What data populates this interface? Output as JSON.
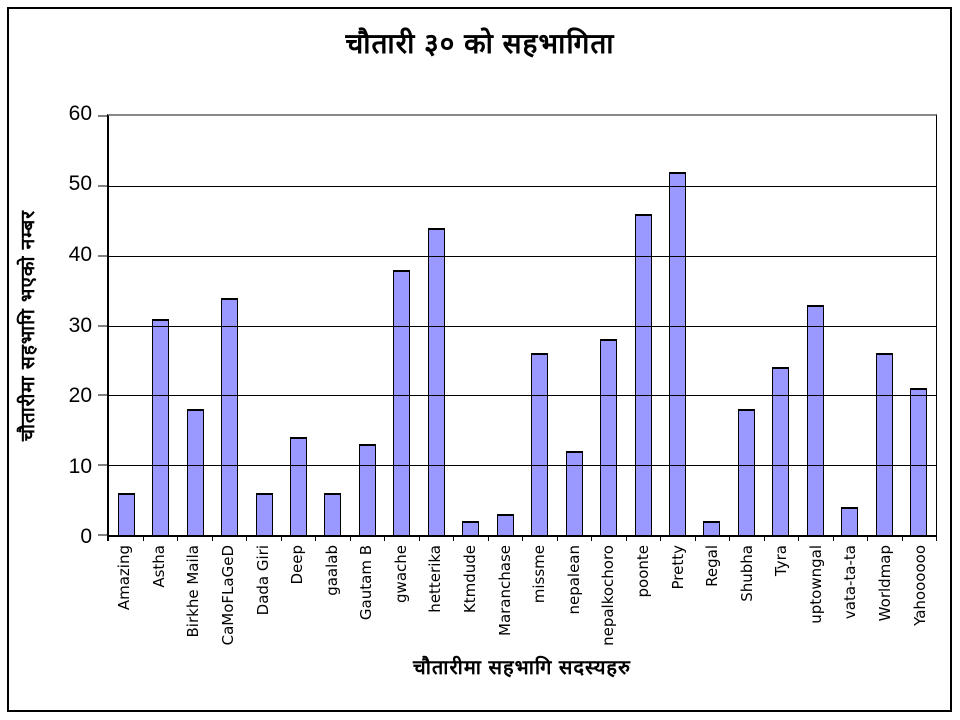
{
  "chart_data": {
    "type": "bar",
    "title": "चौतारी ३० को सहभागिता",
    "xlabel": "चौतारीमा सहभागि सदस्यहरु",
    "ylabel": "चौतारीमा सहभागि भएको नम्बर",
    "categories": [
      "Amazing",
      "Astha",
      "Birkhe Maila",
      "CaMoFLaGeD",
      "Dada Giri",
      "Deep",
      "gaalab",
      "Gautam B",
      "gwache",
      "hetterika",
      "Ktmdude",
      "Maranchase",
      "missme",
      "nepalean",
      "nepalkochoro",
      "poonte",
      "Pretty",
      "Regal",
      "Shubha",
      "Tyra",
      "uptowngal",
      "vata-ta-ta",
      "Worldmap",
      "Yahoooooo"
    ],
    "values": [
      6,
      31,
      18,
      34,
      6,
      14,
      6,
      13,
      38,
      44,
      2,
      3,
      26,
      12,
      28,
      46,
      52,
      2,
      18,
      24,
      33,
      4,
      26,
      21
    ],
    "ylim": [
      0,
      60
    ],
    "yticks": [
      0,
      10,
      20,
      30,
      40,
      50,
      60
    ],
    "grid": "horizontal",
    "legend": "none",
    "bar_color": "#9999FF",
    "bar_border_color": "#000000",
    "gridline_color": "#000000",
    "plot_top_border_color": "#888888",
    "background_color": "#FFFFFF"
  }
}
